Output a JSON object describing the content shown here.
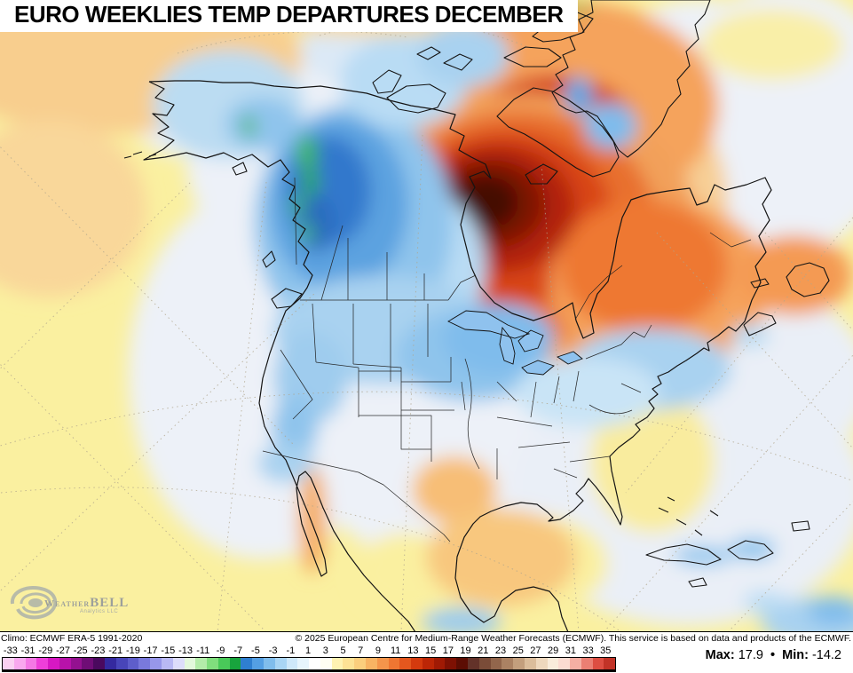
{
  "title": "EURO WEEKLIES TEMP DEPARTURES DECEMBER",
  "logo": {
    "brand_left": "Weather",
    "brand_right": "BELL",
    "subtitle": "Analytics LLC"
  },
  "footer": {
    "climo": "Climo: ECMWF ERA-5 1991-2020",
    "copyright": "© 2025 European Centre for Medium-Range Weather Forecasts (ECMWF). This service is based on data and products of the ECMWF."
  },
  "stats": {
    "max_label": "Max:",
    "max_value": "17.9",
    "separator": "•",
    "min_label": "Min:",
    "min_value": "-14.2"
  },
  "colorbar": {
    "tick_labels": [
      "-33",
      "-31",
      "-29",
      "-27",
      "-25",
      "-23",
      "-21",
      "-19",
      "-17",
      "-15",
      "-13",
      "-11",
      "-9",
      "-7",
      "-5",
      "-3",
      "-1",
      "1",
      "3",
      "5",
      "7",
      "9",
      "11",
      "13",
      "15",
      "17",
      "19",
      "21",
      "23",
      "25",
      "27",
      "29",
      "31",
      "33",
      "35"
    ],
    "cell_colors": [
      "#FBD1F2",
      "#F9A8EE",
      "#F478E5",
      "#EE3FD9",
      "#D718C3",
      "#B812AA",
      "#941190",
      "#6F0D76",
      "#4A095E",
      "#34299F",
      "#4845B9",
      "#5E5ECB",
      "#7979DC",
      "#9797EA",
      "#B9B9F4",
      "#DDDDFB",
      "#E3F8DC",
      "#B3ECA9",
      "#80DE7D",
      "#49C959",
      "#18A43D",
      "#2F7FD0",
      "#549FE3",
      "#80BDEC",
      "#A9D5F4",
      "#CEE8FA",
      "#E7F5FD",
      "#FFFFFF",
      "#FFFEF2",
      "#FEF2B2",
      "#FDE295",
      "#FBCE7D",
      "#F8B363",
      "#F4954B",
      "#EE7632",
      "#E4571E",
      "#D43A0E",
      "#BC2606",
      "#A01A04",
      "#7E1103",
      "#5C0D03",
      "#633229",
      "#7A4C38",
      "#92664C",
      "#AB8263",
      "#C39F7D",
      "#DBBD9B",
      "#EED8BD",
      "#F9ECDB",
      "#FBDBD1",
      "#F5AFA3",
      "#EB7F73",
      "#DD4E42",
      "#C23327"
    ]
  },
  "map": {
    "region": "North America",
    "ocean_base_color": "#FAF0A0",
    "anomaly_palette": {
      "extreme_warm_core": "#450B04",
      "warm": "#E86F2E",
      "neutral": "#EDF1F8",
      "cool": "#5CA2E0",
      "extreme_cool_green": "#3FBA4C"
    },
    "features": [
      "intense warm anomaly centered west of Hudson Bay extending over Baffin Island and Davis Strait",
      "cool anomaly over Alaska, western Canada and the northern United States",
      "small extreme-cool green spots along the British Columbia / SE Alaska coast",
      "mild warm anomalies over the subtropical Pacific, Gulf of Mexico and western Atlantic"
    ]
  }
}
